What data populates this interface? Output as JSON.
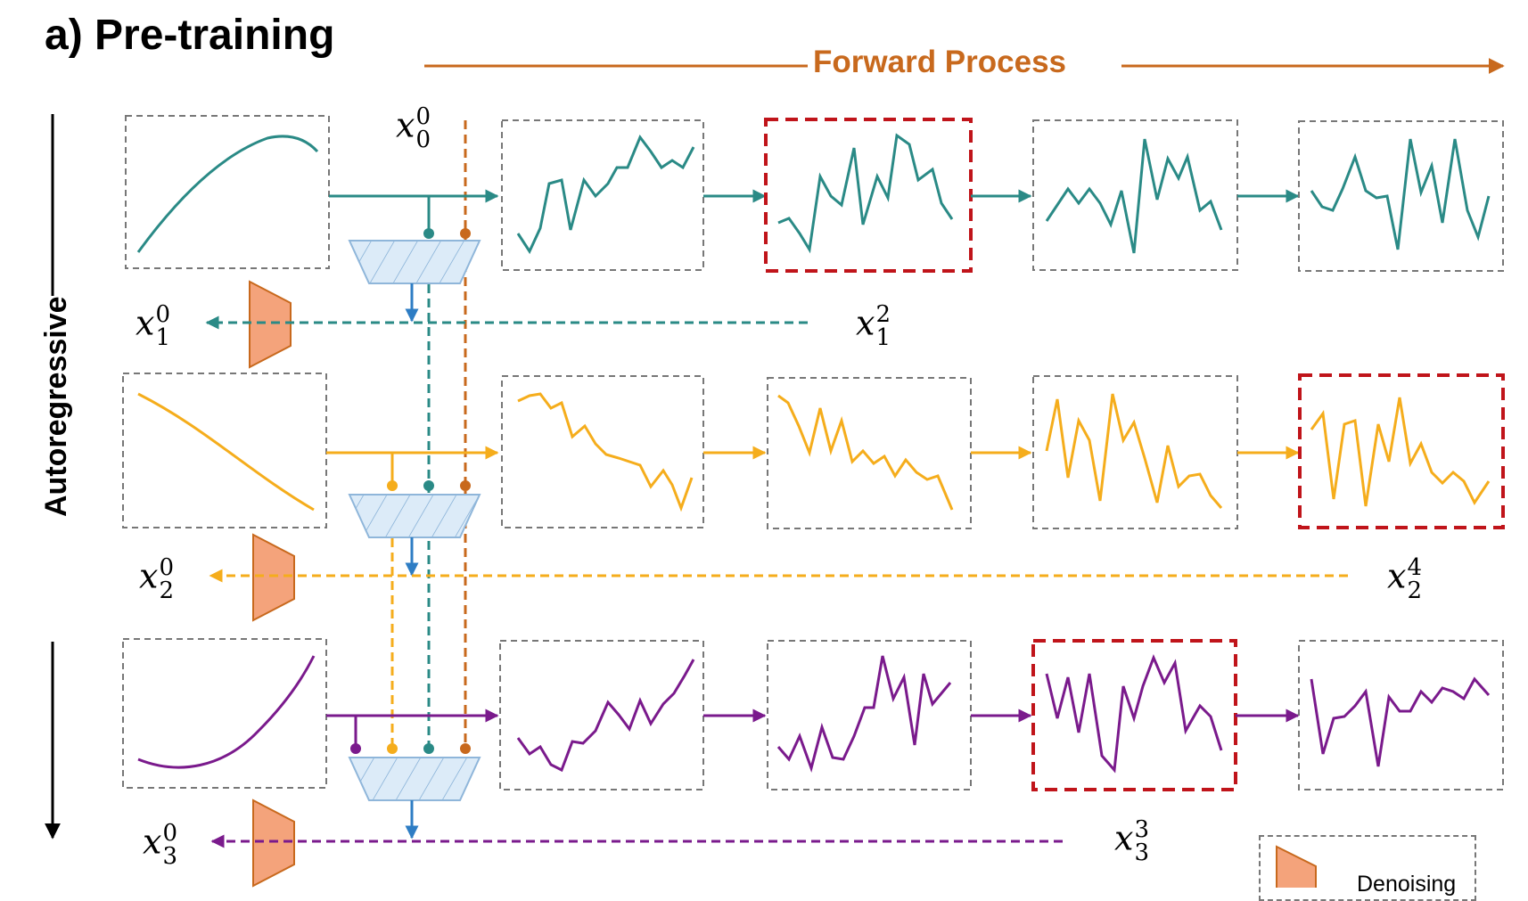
{
  "title": "a) Pre-training",
  "forward_label": "Forward Process",
  "side_label": "Autoregressive",
  "legend_text": "Denoising",
  "labels": {
    "x00": {
      "base": "x",
      "sup": "0",
      "sub": "0"
    },
    "x10": {
      "base": "x",
      "sup": "0",
      "sub": "1"
    },
    "x12": {
      "base": "x",
      "sup": "2",
      "sub": "1"
    },
    "x20": {
      "base": "x",
      "sup": "0",
      "sub": "2"
    },
    "x24": {
      "base": "x",
      "sup": "4",
      "sub": "2"
    },
    "x30": {
      "base": "x",
      "sup": "0",
      "sub": "3"
    },
    "x33": {
      "base": "x",
      "sup": "3",
      "sub": "3"
    }
  },
  "colors": {
    "teal": "#2a8a86",
    "orange": "#f5ad1c",
    "purple": "#7a1a8c",
    "rust": "#c8691d",
    "highlight": "#c0141a",
    "blue": "#2e7dc4",
    "denoiser_fill": "#f4a37b",
    "encoder_fill": "#dcebf8"
  }
}
